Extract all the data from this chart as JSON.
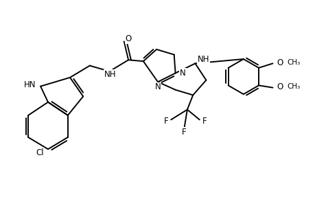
{
  "bg_color": "#ffffff",
  "line_color": "#000000",
  "line_width": 1.4,
  "font_size": 8.5,
  "fig_width": 4.6,
  "fig_height": 3.0,
  "dpi": 100,
  "xlim": [
    -2.6,
    4.5
  ],
  "ylim": [
    -1.8,
    1.8
  ]
}
